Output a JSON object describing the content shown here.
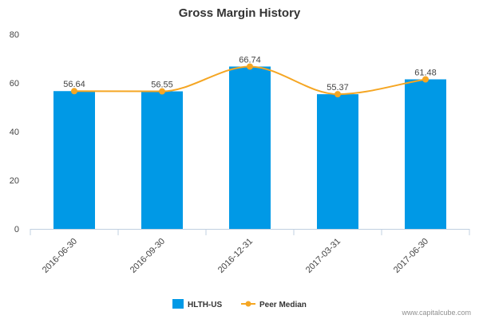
{
  "chart_data": {
    "type": "bar",
    "title": "Gross Margin History",
    "xlabel": "",
    "ylabel": "",
    "ylim": [
      0,
      80
    ],
    "yticks": [
      0,
      20,
      40,
      60,
      80
    ],
    "grid": false,
    "legend_position": "bottom",
    "categories": [
      "2016-06-30",
      "2016-09-30",
      "2016-12-31",
      "2017-03-31",
      "2017-06-30"
    ],
    "series": [
      {
        "name": "HLTH-US",
        "type": "bar",
        "color": "#0099e6",
        "values": [
          56.64,
          56.55,
          66.74,
          55.37,
          61.48
        ],
        "data_labels": [
          "56.64",
          "56.55",
          "66.74",
          "55.37",
          "61.48"
        ]
      },
      {
        "name": "Peer Median",
        "type": "line",
        "color": "#f5a623",
        "values": [
          56.64,
          56.55,
          66.74,
          55.37,
          61.48
        ]
      }
    ]
  },
  "credit": "www.capitalcube.com"
}
